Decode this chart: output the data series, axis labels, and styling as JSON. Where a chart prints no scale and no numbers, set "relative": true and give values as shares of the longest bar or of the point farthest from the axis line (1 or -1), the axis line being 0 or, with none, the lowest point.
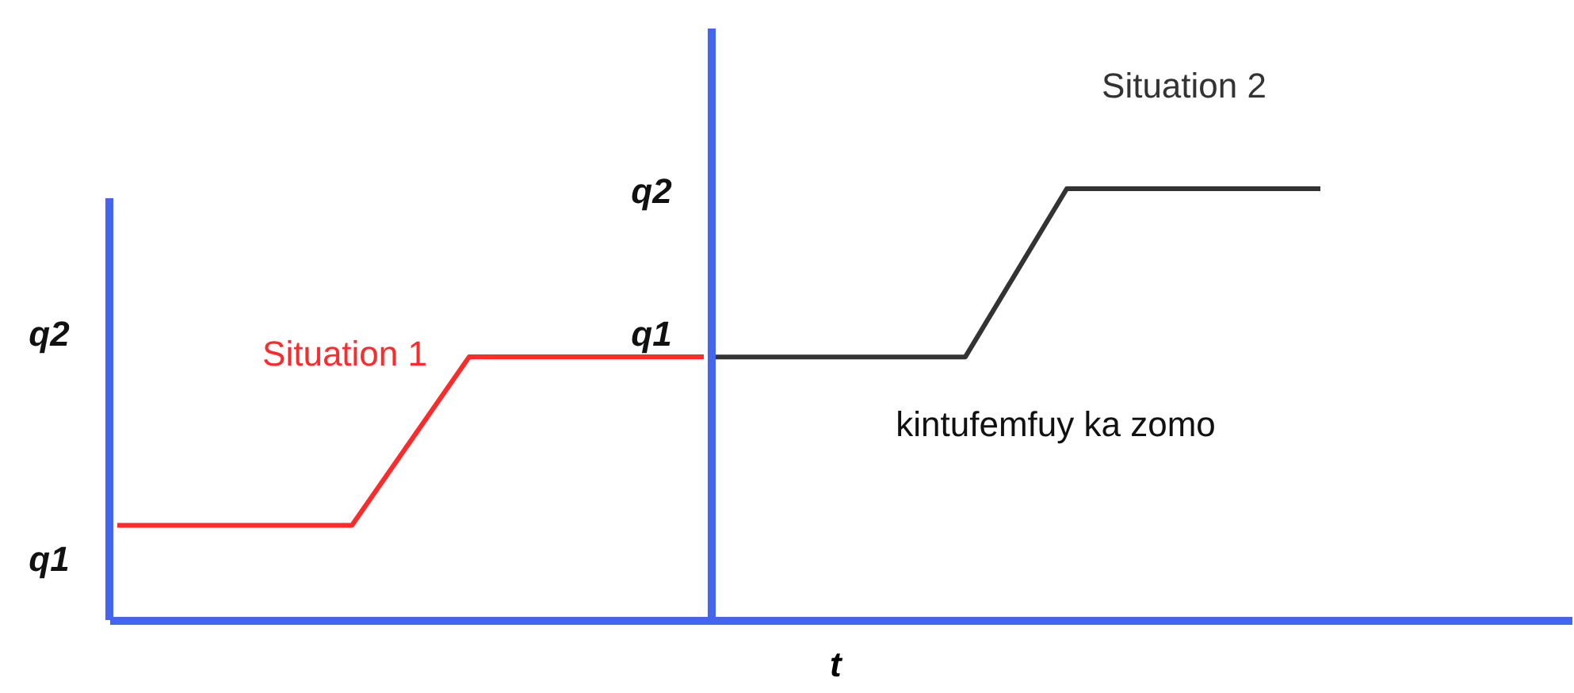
{
  "chart_data": [
    {
      "type": "line",
      "relative": true,
      "categories": [
        null,
        null,
        null,
        null,
        null,
        null,
        null,
        null,
        null,
        null,
        null
      ],
      "grid": false,
      "marker": "none",
      "line_style": "solid",
      "series": [
        {
          "name": "Situation 1",
          "color": "#ff2a2a",
          "values": [
            0.36,
            0.36,
            0.36,
            0.36,
            0.36,
            0.68,
            1,
            1,
            1,
            1,
            1
          ]
        }
      ],
      "annotations": [
        "q2",
        "q1"
      ]
    },
    {
      "type": "line",
      "relative": true,
      "categories": [
        null,
        null,
        null,
        null,
        null,
        null,
        null,
        null,
        null,
        null,
        null,
        null,
        null
      ],
      "grid": false,
      "marker": "none",
      "line_style": "solid",
      "xlabel": "t",
      "series": [
        {
          "name": "Situation 2",
          "color": "#333333",
          "values": [
            0.61,
            0.61,
            0.61,
            0.61,
            0.61,
            0.61,
            0.805,
            1,
            1,
            1,
            1,
            1,
            1
          ]
        }
      ],
      "annotations": [
        "q2",
        "q1",
        "kintufemfuy ka zomo"
      ]
    }
  ]
}
